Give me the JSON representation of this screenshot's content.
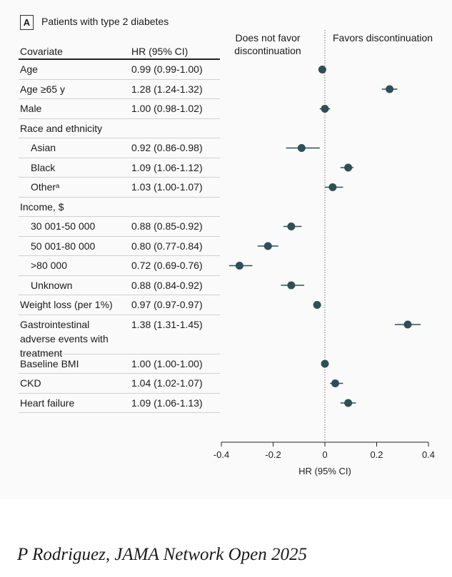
{
  "panel": {
    "badge": "A",
    "title": "Patients with type 2 diabetes"
  },
  "table": {
    "covariate_header": "Covariate",
    "hr_header": "HR (95% CI)"
  },
  "direction": {
    "left": "Does not favor discontinuation",
    "right": "Favors discontinuation"
  },
  "rows": [
    {
      "label": "Age",
      "hr_text": "0.99 (0.99-1.00)",
      "indent": false
    },
    {
      "label": "Age ≥65 y",
      "hr_text": "1.28 (1.24-1.32)",
      "indent": false
    },
    {
      "label": "Male",
      "hr_text": "1.00 (0.98-1.02)",
      "indent": false
    },
    {
      "label": "Race and ethnicity",
      "hr_text": "",
      "indent": false
    },
    {
      "label": "Asian",
      "hr_text": "0.92 (0.86-0.98)",
      "indent": true
    },
    {
      "label": "Black",
      "hr_text": "1.09 (1.06-1.12)",
      "indent": true
    },
    {
      "label": "Otherᵃ",
      "hr_text": "1.03 (1.00-1.07)",
      "indent": true
    },
    {
      "label": "Income, $",
      "hr_text": "",
      "indent": false
    },
    {
      "label": "30 001-50 000",
      "hr_text": "0.88 (0.85-0.92)",
      "indent": true
    },
    {
      "label": "50 001-80 000",
      "hr_text": "0.80 (0.77-0.84)",
      "indent": true
    },
    {
      "label": ">80 000",
      "hr_text": "0.72 (0.69-0.76)",
      "indent": true
    },
    {
      "label": "Unknown",
      "hr_text": "0.88 (0.84-0.92)",
      "indent": true
    },
    {
      "label": "Weight loss (per 1%)",
      "hr_text": "0.97 (0.97-0.97)",
      "indent": false
    },
    {
      "label": "Gastrointestinal adverse events with treatment",
      "hr_text": "1.38 (1.31-1.45)",
      "indent": false
    },
    {
      "label": "Baseline BMI",
      "hr_text": "1.00 (1.00-1.00)",
      "indent": false
    },
    {
      "label": "CKD",
      "hr_text": "1.04 (1.02-1.07)",
      "indent": false
    },
    {
      "label": "Heart failure",
      "hr_text": "1.09 (1.06-1.13)",
      "indent": false
    }
  ],
  "chart_data": {
    "type": "scatter",
    "subtype": "forest",
    "xlabel": "HR (95% CI)",
    "xlim": [
      -0.4,
      0.4
    ],
    "xticks": [
      -0.4,
      -0.2,
      0,
      0.2,
      0.4
    ],
    "xtick_labels": [
      "-0.4",
      "-0.2",
      "0",
      "0.2",
      "0.4"
    ],
    "reference_line": 0,
    "marker_color": "#2f4f55",
    "points": [
      {
        "row": "Age",
        "x": -0.01,
        "lo": -0.01,
        "hi": 0.0
      },
      {
        "row": "Age ≥65 y",
        "x": 0.25,
        "lo": 0.22,
        "hi": 0.28
      },
      {
        "row": "Male",
        "x": 0.0,
        "lo": -0.02,
        "hi": 0.02
      },
      {
        "row": "Asian",
        "x": -0.09,
        "lo": -0.15,
        "hi": -0.02
      },
      {
        "row": "Black",
        "x": 0.09,
        "lo": 0.06,
        "hi": 0.11
      },
      {
        "row": "Otherᵃ",
        "x": 0.03,
        "lo": 0.0,
        "hi": 0.07
      },
      {
        "row": "30 001-50 000",
        "x": -0.13,
        "lo": -0.16,
        "hi": -0.09
      },
      {
        "row": "50 001-80 000",
        "x": -0.22,
        "lo": -0.26,
        "hi": -0.18
      },
      {
        "row": ">80 000",
        "x": -0.33,
        "lo": -0.37,
        "hi": -0.28
      },
      {
        "row": "Unknown",
        "x": -0.13,
        "lo": -0.17,
        "hi": -0.08
      },
      {
        "row": "Weight loss (per 1%)",
        "x": -0.03,
        "lo": -0.03,
        "hi": -0.03
      },
      {
        "row": "Gastrointestinal adverse events with treatment",
        "x": 0.32,
        "lo": 0.27,
        "hi": 0.37
      },
      {
        "row": "Baseline BMI",
        "x": 0.0,
        "lo": 0.0,
        "hi": 0.0
      },
      {
        "row": "CKD",
        "x": 0.04,
        "lo": 0.02,
        "hi": 0.07
      },
      {
        "row": "Heart failure",
        "x": 0.09,
        "lo": 0.06,
        "hi": 0.12
      }
    ]
  },
  "caption": "P Rodriguez, JAMA Network Open 2025"
}
